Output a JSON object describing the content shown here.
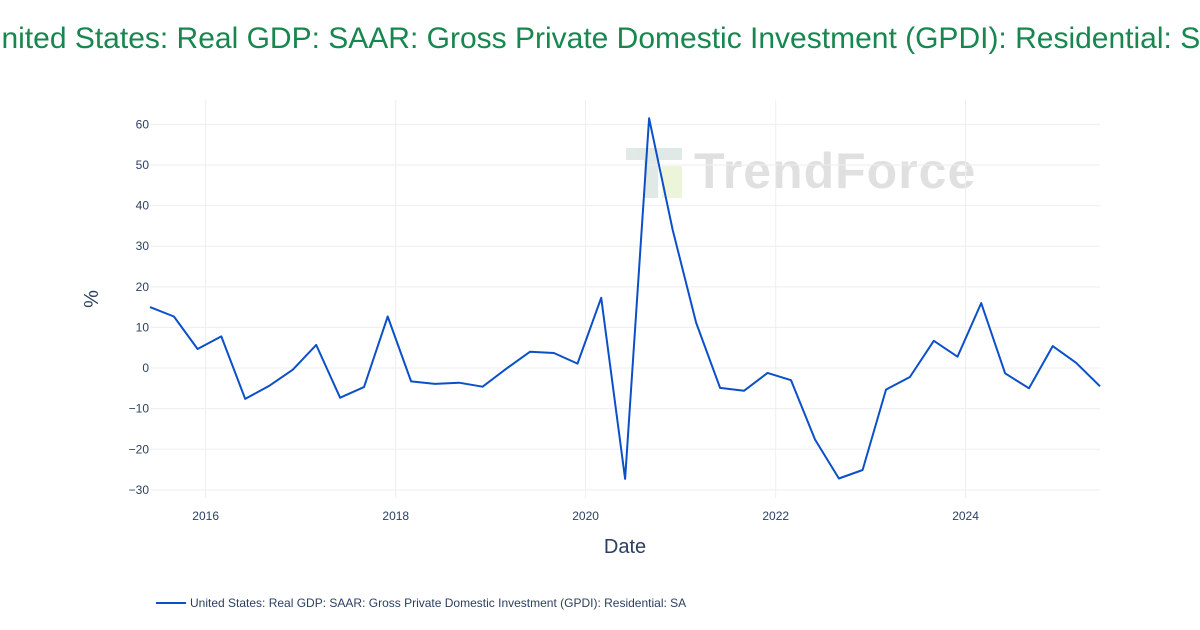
{
  "chart_data": {
    "type": "line",
    "title": "United States: Real GDP: SAAR: Gross Private Domestic Investment (GPDI): Residential: SA",
    "xlabel": "Date",
    "ylabel": "%",
    "x_tick_labels": [
      "2016",
      "2018",
      "2020",
      "2022",
      "2024"
    ],
    "y_tick_labels": [
      "−30",
      "−20",
      "−10",
      "0",
      "10",
      "20",
      "30",
      "40",
      "50",
      "60"
    ],
    "y_ticks": [
      -30,
      -20,
      -10,
      0,
      10,
      20,
      30,
      40,
      50,
      60
    ],
    "x_ticks": [
      "2016-01-01",
      "2018-01-01",
      "2020-01-01",
      "2022-01-01",
      "2024-01-01"
    ],
    "xlim": [
      "2015-06-01",
      "2025-06-01"
    ],
    "ylim": [
      -32,
      66
    ],
    "grid": true,
    "legend_position": "bottom-left",
    "series": [
      {
        "name": "United States: Real GDP: SAAR: Gross Private Domestic Investment (GPDI): Residential: SA",
        "color": "#0b4fc9",
        "x": [
          "2015-06-01",
          "2015-09-01",
          "2015-12-01",
          "2016-03-01",
          "2016-06-01",
          "2016-09-01",
          "2016-12-01",
          "2017-03-01",
          "2017-06-01",
          "2017-09-01",
          "2017-12-01",
          "2018-03-01",
          "2018-06-01",
          "2018-09-01",
          "2018-12-01",
          "2019-03-01",
          "2019-06-01",
          "2019-09-01",
          "2019-12-01",
          "2020-03-01",
          "2020-06-01",
          "2020-09-01",
          "2020-12-01",
          "2021-03-01",
          "2021-06-01",
          "2021-09-01",
          "2021-12-01",
          "2022-03-01",
          "2022-06-01",
          "2022-09-01",
          "2022-12-01",
          "2023-03-01",
          "2023-06-01",
          "2023-09-01",
          "2023-12-01",
          "2024-03-01",
          "2024-06-01",
          "2024-09-01",
          "2024-12-01",
          "2025-03-01",
          "2025-06-01"
        ],
        "y": [
          15.0,
          12.7,
          4.7,
          7.8,
          -7.6,
          -4.4,
          -0.4,
          5.7,
          -7.3,
          -4.7,
          12.7,
          -3.3,
          -3.9,
          -3.6,
          -4.6,
          -0.2,
          4.0,
          3.7,
          1.1,
          17.3,
          -27.3,
          61.5,
          34.0,
          11.2,
          -4.9,
          -5.6,
          -1.2,
          -3.0,
          -17.6,
          -27.2,
          -25.1,
          -5.3,
          -2.2,
          6.7,
          2.8,
          16.0,
          -1.3,
          -5.0,
          5.4,
          1.3,
          -4.5
        ]
      }
    ]
  }
}
